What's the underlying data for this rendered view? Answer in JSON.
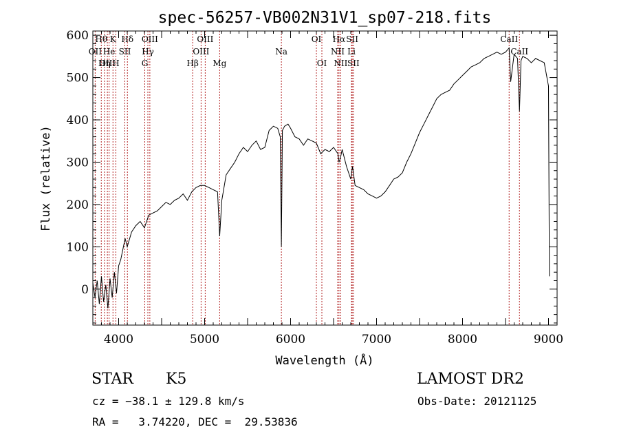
{
  "chart_data": {
    "type": "line",
    "title": "spec-56257-VB002N31V1_sp07-218.fits",
    "xlabel": "Wavelength (Å)",
    "ylabel": "Flux (relative)",
    "xlim": [
      3700,
      9100
    ],
    "ylim": [
      -85,
      610
    ],
    "xticks": [
      4000,
      5000,
      6000,
      7000,
      8000,
      9000
    ],
    "yticks": [
      0,
      100,
      200,
      300,
      400,
      500,
      600
    ],
    "line_color": "#000000",
    "marker_color": "#b22222",
    "grid": false,
    "series": [
      {
        "x": [
          3700,
          3725,
          3750,
          3775,
          3800,
          3825,
          3850,
          3875,
          3900,
          3925,
          3950,
          3975,
          4000,
          4025,
          4050,
          4075,
          4100,
          4150,
          4200,
          4250,
          4300,
          4350,
          4400,
          4450,
          4500,
          4550,
          4600,
          4650,
          4700,
          4750,
          4800,
          4850,
          4900,
          4950,
          5000,
          5050,
          5100,
          5150,
          5175,
          5200,
          5250,
          5300,
          5350,
          5400,
          5450,
          5500,
          5550,
          5600,
          5650,
          5700,
          5750,
          5800,
          5850,
          5880,
          5893,
          5905,
          5930,
          5970,
          6000,
          6050,
          6100,
          6150,
          6200,
          6250,
          6300,
          6350,
          6400,
          6450,
          6500,
          6550,
          6563,
          6580,
          6600,
          6650,
          6700,
          6720,
          6750,
          6800,
          6850,
          6900,
          6950,
          7000,
          7050,
          7100,
          7150,
          7200,
          7250,
          7300,
          7350,
          7400,
          7450,
          7500,
          7550,
          7600,
          7650,
          7700,
          7750,
          7800,
          7850,
          7900,
          7950,
          8000,
          8050,
          8100,
          8150,
          8200,
          8250,
          8300,
          8350,
          8400,
          8450,
          8500,
          8542,
          8560,
          8600,
          8640,
          8662,
          8680,
          8700,
          8750,
          8800,
          8850,
          8900,
          8950,
          9000,
          9010
        ],
        "y": [
          15,
          -20,
          20,
          -35,
          30,
          -30,
          10,
          -45,
          25,
          -20,
          40,
          -10,
          55,
          70,
          95,
          120,
          100,
          135,
          150,
          160,
          145,
          175,
          180,
          185,
          195,
          205,
          200,
          210,
          215,
          225,
          210,
          230,
          240,
          245,
          245,
          240,
          235,
          230,
          125,
          210,
          270,
          285,
          300,
          320,
          335,
          325,
          340,
          350,
          330,
          335,
          375,
          385,
          380,
          360,
          100,
          375,
          385,
          390,
          380,
          360,
          355,
          340,
          355,
          350,
          345,
          320,
          330,
          325,
          335,
          320,
          300,
          310,
          330,
          290,
          260,
          290,
          245,
          240,
          235,
          225,
          220,
          215,
          220,
          230,
          245,
          260,
          265,
          275,
          300,
          320,
          345,
          370,
          390,
          410,
          430,
          450,
          460,
          465,
          470,
          485,
          495,
          505,
          515,
          525,
          530,
          535,
          545,
          550,
          555,
          560,
          555,
          560,
          570,
          490,
          555,
          545,
          420,
          540,
          550,
          545,
          535,
          545,
          540,
          535,
          480,
          30
        ]
      }
    ],
    "lines": [
      {
        "name": "Hθ",
        "wavelength": 3798,
        "row": 0
      },
      {
        "name": "K",
        "wavelength": 3934,
        "row": 0
      },
      {
        "name": "Hδ",
        "wavelength": 4102,
        "row": 0
      },
      {
        "name": "OIII",
        "wavelength": 4363,
        "row": 0
      },
      {
        "name": "OIII",
        "wavelength": 5007,
        "row": 0
      },
      {
        "name": "OI",
        "wavelength": 6300,
        "row": 0
      },
      {
        "name": "Hα",
        "wavelength": 6563,
        "row": 0
      },
      {
        "name": "SII",
        "wavelength": 6717,
        "row": 0
      },
      {
        "name": "CaII",
        "wavelength": 8542,
        "row": 0
      },
      {
        "name": "OII",
        "wavelength": 3727,
        "row": 1
      },
      {
        "name": "He",
        "wavelength": 3889,
        "row": 1
      },
      {
        "name": "SII",
        "wavelength": 4072,
        "row": 1
      },
      {
        "name": "Hγ",
        "wavelength": 4340,
        "row": 1
      },
      {
        "name": "OIII",
        "wavelength": 4959,
        "row": 1
      },
      {
        "name": "Na",
        "wavelength": 5893,
        "row": 1
      },
      {
        "name": "NII",
        "wavelength": 6548,
        "row": 1
      },
      {
        "name": "Li",
        "wavelength": 6708,
        "row": 1
      },
      {
        "name": "CaII",
        "wavelength": 8662,
        "row": 1
      },
      {
        "name": "OIII",
        "wavelength": 3869,
        "row": 2
      },
      {
        "name": "Hη",
        "wavelength": 3835,
        "row": 2
      },
      {
        "name": "H",
        "wavelength": 3968,
        "row": 2
      },
      {
        "name": "G",
        "wavelength": 4304,
        "row": 2
      },
      {
        "name": "Hβ",
        "wavelength": 4861,
        "row": 2
      },
      {
        "name": "Mg",
        "wavelength": 5175,
        "row": 2
      },
      {
        "name": "OI",
        "wavelength": 6364,
        "row": 2
      },
      {
        "name": "NII",
        "wavelength": 6583,
        "row": 2
      },
      {
        "name": "SII",
        "wavelength": 6731,
        "row": 2
      }
    ]
  },
  "info": {
    "class_label": "STAR",
    "subclass_label": "K5",
    "survey": "LAMOST DR2",
    "cz": "cz = −38.1 ± 129.8 km/s",
    "obs_date": "Obs-Date: 20121125",
    "coords": "RA =   3.74220, DEC =  29.53836"
  }
}
